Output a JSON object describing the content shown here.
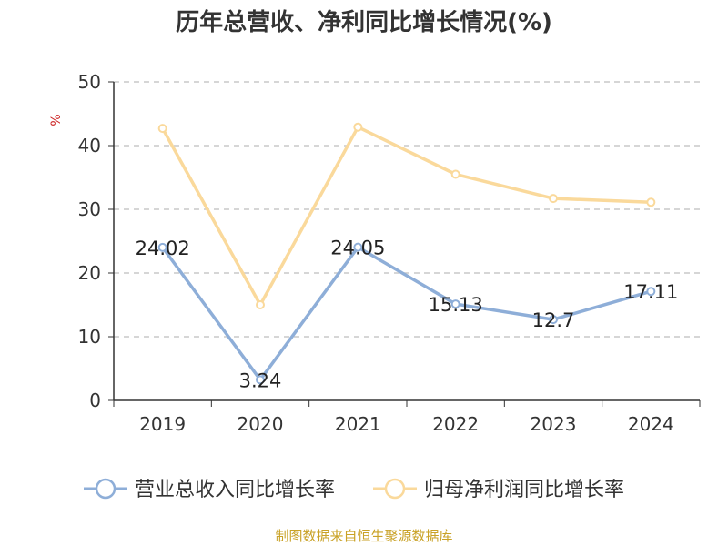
{
  "chart_data": {
    "type": "line",
    "title": "历年总营收、净利同比增长情况(%)",
    "ylabel": "%",
    "x": [
      "2019",
      "2020",
      "2021",
      "2022",
      "2023",
      "2024"
    ],
    "ylim": [
      0,
      50
    ],
    "yticks": [
      0,
      10,
      20,
      30,
      40,
      50
    ],
    "grid": true,
    "legend_position": "bottom",
    "series": [
      {
        "name": "营业总收入同比增长率",
        "color": "#8eaed8",
        "values": [
          24.02,
          3.24,
          24.05,
          15.13,
          12.7,
          17.11
        ],
        "labels": [
          "24.02",
          "3.24",
          "24.05",
          "15.13",
          "12.7",
          "17.11"
        ]
      },
      {
        "name": "归母净利润同比增长率",
        "color": "#fad99b",
        "values": [
          42.7,
          15.0,
          42.9,
          35.5,
          31.7,
          31.1
        ]
      }
    ]
  },
  "source": "制图数据来自恒生聚源数据库"
}
